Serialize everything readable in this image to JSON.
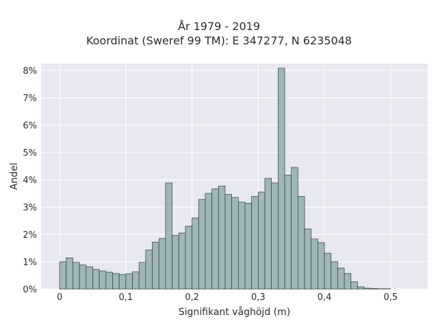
{
  "chart_data": {
    "type": "bar",
    "title": "År 1979 - 2019",
    "subtitle": "Koordinat (Sweref 99 TM): E 347277, N 6235048",
    "xlabel": "Signifikant våghöjd (m)",
    "ylabel": "Andel",
    "xlim": [
      -0.028,
      0.556
    ],
    "ylim": [
      0,
      8.25
    ],
    "bin_width": 0.01,
    "bin_start": 0.0,
    "x_ticks": [
      0,
      0.1,
      0.2,
      0.3,
      0.4,
      0.5
    ],
    "x_tick_labels": [
      "0",
      "0,1",
      "0,2",
      "0,3",
      "0,4",
      "0,5"
    ],
    "y_ticks": [
      0,
      1,
      2,
      3,
      4,
      5,
      6,
      7,
      8
    ],
    "y_tick_labels": [
      "0%",
      "1%",
      "2%",
      "3%",
      "4%",
      "5%",
      "6%",
      "7%",
      "8%"
    ],
    "values": [
      1.0,
      1.14,
      0.98,
      0.88,
      0.81,
      0.72,
      0.66,
      0.62,
      0.57,
      0.53,
      0.56,
      0.63,
      0.98,
      1.43,
      1.72,
      1.85,
      3.88,
      1.97,
      2.05,
      2.3,
      2.6,
      3.28,
      3.5,
      3.67,
      3.77,
      3.46,
      3.35,
      3.18,
      3.14,
      3.39,
      3.55,
      4.05,
      3.88,
      8.08,
      4.17,
      4.45,
      3.39,
      2.2,
      1.83,
      1.7,
      1.31,
      1.0,
      0.77,
      0.57,
      0.27,
      0.08,
      0.03,
      0.02,
      0.01,
      0.01
    ],
    "grid": true,
    "legend": "none",
    "colors": {
      "bar_fill": "#9fb7b7",
      "bar_edge": "#2f3b3b",
      "plot_bg": "#e8e8f0",
      "grid": "#ffffff"
    }
  }
}
